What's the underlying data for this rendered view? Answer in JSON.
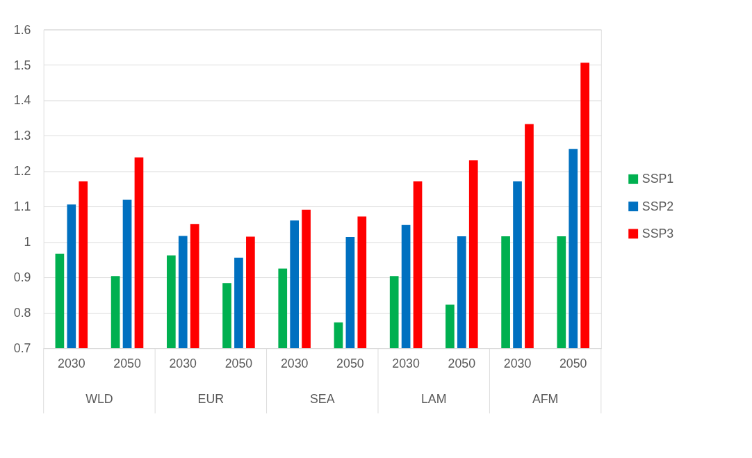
{
  "chart_data": {
    "type": "bar",
    "categories": [
      "2030",
      "2050",
      "2030",
      "2050",
      "2030",
      "2050",
      "2030",
      "2050",
      "2030",
      "2050"
    ],
    "annotations": [
      "WLD",
      "EUR",
      "SEA",
      "LAM",
      "AFM"
    ],
    "series": [
      {
        "name": "SSP1",
        "color": "#00b050",
        "values": [
          0.967,
          0.904,
          0.962,
          0.884,
          0.925,
          0.773,
          0.904,
          0.823,
          1.016,
          1.016
        ]
      },
      {
        "name": "SSP2",
        "color": "#0070c0",
        "values": [
          1.106,
          1.119,
          1.017,
          0.956,
          1.061,
          1.014,
          1.048,
          1.016,
          1.171,
          1.263
        ]
      },
      {
        "name": "SSP3",
        "color": "#ff0000",
        "values": [
          1.171,
          1.239,
          1.051,
          1.015,
          1.091,
          1.072,
          1.171,
          1.231,
          1.333,
          1.506
        ]
      }
    ],
    "ylim": [
      0.7,
      1.6
    ],
    "yticks": [
      0.7,
      0.8,
      0.9,
      1,
      1.1,
      1.2,
      1.3,
      1.4,
      1.5,
      1.6
    ],
    "grid": "y",
    "legend": "right"
  }
}
